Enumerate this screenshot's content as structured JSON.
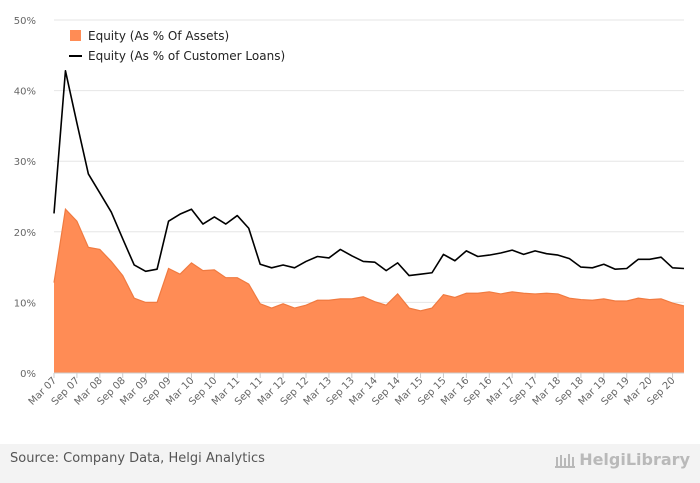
{
  "chart_data": {
    "type": "area",
    "categories": [
      "Mar 07",
      "Jun 07",
      "Sep 07",
      "Dec 07",
      "Mar 08",
      "Jun 08",
      "Sep 08",
      "Dec 08",
      "Mar 09",
      "Jun 09",
      "Sep 09",
      "Dec 09",
      "Mar 10",
      "Jun 10",
      "Sep 10",
      "Dec 10",
      "Mar 11",
      "Jun 11",
      "Sep 11",
      "Dec 11",
      "Mar 12",
      "Jun 12",
      "Sep 12",
      "Dec 12",
      "Mar 13",
      "Jun 13",
      "Sep 13",
      "Dec 13",
      "Mar 14",
      "Jun 14",
      "Sep 14",
      "Dec 14",
      "Mar 15",
      "Jun 15",
      "Sep 15",
      "Dec 15",
      "Mar 16",
      "Jun 16",
      "Sep 16",
      "Dec 16",
      "Mar 17",
      "Jun 17",
      "Sep 17",
      "Dec 17",
      "Mar 18",
      "Jun 18",
      "Sep 18",
      "Dec 18",
      "Mar 19",
      "Jun 19",
      "Sep 19",
      "Dec 19",
      "Mar 20",
      "Jun 20",
      "Sep 20",
      "Dec 20"
    ],
    "tick_labels": [
      "Mar 07",
      "Sep 07",
      "Mar 08",
      "Sep 08",
      "Mar 09",
      "Sep 09",
      "Mar 10",
      "Sep 10",
      "Mar 11",
      "Sep 11",
      "Mar 12",
      "Sep 12",
      "Mar 13",
      "Sep 13",
      "Mar 14",
      "Sep 14",
      "Mar 15",
      "Sep 15",
      "Mar 16",
      "Sep 16",
      "Mar 17",
      "Sep 17",
      "Mar 18",
      "Sep 18",
      "Mar 19",
      "Sep 19",
      "Mar 20",
      "Sep 20"
    ],
    "series": [
      {
        "name": "Equity (As % Of Assets)",
        "type": "area",
        "color": "#ff8c55",
        "values": [
          12.8,
          23.2,
          21.5,
          17.8,
          17.5,
          15.8,
          13.8,
          10.6,
          10.0,
          10.0,
          14.8,
          14.0,
          15.6,
          14.5,
          14.6,
          13.5,
          13.5,
          12.6,
          9.8,
          9.2,
          9.8,
          9.2,
          9.6,
          10.3,
          10.3,
          10.5,
          10.5,
          10.8,
          10.1,
          9.6,
          11.2,
          9.2,
          8.8,
          9.2,
          11.1,
          10.7,
          11.3,
          11.3,
          11.5,
          11.2,
          11.5,
          11.3,
          11.2,
          11.3,
          11.2,
          10.6,
          10.4,
          10.3,
          10.5,
          10.2,
          10.2,
          10.6,
          10.4,
          10.5,
          9.9,
          9.5
        ]
      },
      {
        "name": "Equity (As % of Customer Loans)",
        "type": "line",
        "color": "#000000",
        "values": [
          22.6,
          42.8,
          35.4,
          28.2,
          25.5,
          22.8,
          19.0,
          15.3,
          14.4,
          14.7,
          21.5,
          22.5,
          23.2,
          21.1,
          22.1,
          21.1,
          22.3,
          20.5,
          15.4,
          14.9,
          15.3,
          14.9,
          15.8,
          16.5,
          16.3,
          17.5,
          16.6,
          15.8,
          15.7,
          14.5,
          15.6,
          13.8,
          14.0,
          14.2,
          16.8,
          15.9,
          17.3,
          16.5,
          16.7,
          17.0,
          17.4,
          16.8,
          17.3,
          16.9,
          16.7,
          16.2,
          15.0,
          14.9,
          15.4,
          14.7,
          14.8,
          16.1,
          16.1,
          16.4,
          14.9,
          14.8
        ]
      }
    ],
    "yticks": [
      "0%",
      "10%",
      "20%",
      "30%",
      "40%",
      "50%"
    ],
    "ylim": [
      0,
      50
    ],
    "title": "",
    "xlabel": "",
    "ylabel": "",
    "grid": true,
    "legend_position": "top-left"
  },
  "footer": {
    "source": "Source: Company Data, Helgi Analytics",
    "brand": "HelgiLibrary"
  }
}
